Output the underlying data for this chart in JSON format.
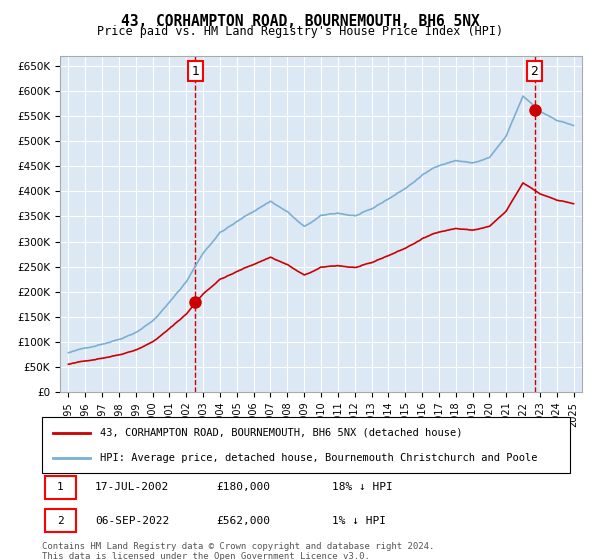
{
  "title": "43, CORHAMPTON ROAD, BOURNEMOUTH, BH6 5NX",
  "subtitle": "Price paid vs. HM Land Registry's House Price Index (HPI)",
  "plot_bg_color": "#dce9f5",
  "grid_color": "#ffffff",
  "ylim": [
    0,
    670000
  ],
  "yticks": [
    0,
    50000,
    100000,
    150000,
    200000,
    250000,
    300000,
    350000,
    400000,
    450000,
    500000,
    550000,
    600000,
    650000
  ],
  "xlim_start": 1994.5,
  "xlim_end": 2025.5,
  "xticks": [
    1995,
    1996,
    1997,
    1998,
    1999,
    2000,
    2001,
    2002,
    2003,
    2004,
    2005,
    2006,
    2007,
    2008,
    2009,
    2010,
    2011,
    2012,
    2013,
    2014,
    2015,
    2016,
    2017,
    2018,
    2019,
    2020,
    2021,
    2022,
    2023,
    2024,
    2025
  ],
  "sale1_x": 2002.54,
  "sale1_y": 180000,
  "sale1_label": "1",
  "sale2_x": 2022.68,
  "sale2_y": 562000,
  "sale2_label": "2",
  "sale1_date": "17-JUL-2002",
  "sale1_price": "£180,000",
  "sale1_hpi": "18% ↓ HPI",
  "sale2_date": "06-SEP-2022",
  "sale2_price": "£562,000",
  "sale2_hpi": "1% ↓ HPI",
  "legend_line1": "43, CORHAMPTON ROAD, BOURNEMOUTH, BH6 5NX (detached house)",
  "legend_line2": "HPI: Average price, detached house, Bournemouth Christchurch and Poole",
  "footnote": "Contains HM Land Registry data © Crown copyright and database right 2024.\nThis data is licensed under the Open Government Licence v3.0.",
  "red_line_color": "#cc0000",
  "blue_line_color": "#7bafd4",
  "marker_color": "#cc0000"
}
